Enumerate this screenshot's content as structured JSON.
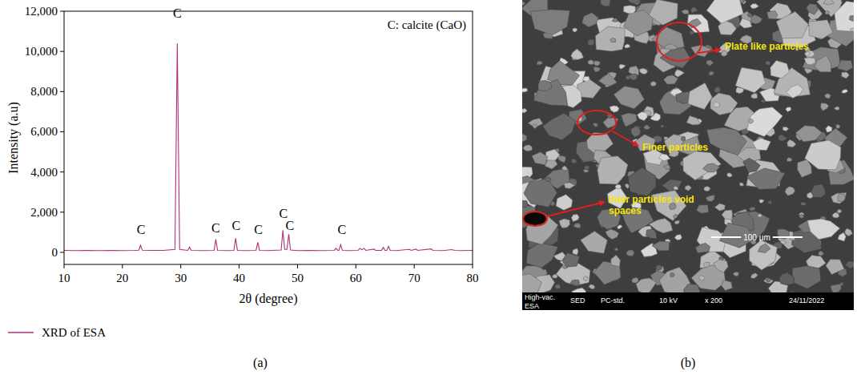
{
  "chart_data": {
    "type": "line",
    "panel_label": "(a)",
    "note": "C: calcite (CaO)",
    "x_label": "2θ (degree)",
    "y_label": "Intensity (a.u)",
    "x": [
      10,
      12,
      14,
      16,
      18,
      20,
      22,
      22.8,
      23.1,
      23.4,
      25,
      27,
      29.0,
      29.4,
      29.8,
      31.2,
      31.5,
      31.8,
      34,
      35.7,
      36.0,
      36.3,
      38,
      39.1,
      39.4,
      39.7,
      41,
      42.9,
      43.2,
      43.5,
      45,
      47.2,
      47.5,
      47.8,
      48.2,
      48.5,
      48.8,
      50,
      52,
      54,
      56.3,
      56.6,
      56.9,
      57.1,
      57.4,
      57.7,
      59,
      60.4,
      60.7,
      61.0,
      61.4,
      61.7,
      63.1,
      63.4,
      64.4,
      64.7,
      65.0,
      65.3,
      65.6,
      65.9,
      67,
      69.2,
      69.5,
      70.3,
      70.6,
      72.9,
      73.2,
      75,
      76.4,
      77,
      78,
      80
    ],
    "series": [
      {
        "name": "XRD of ESA",
        "color": "#b0307a",
        "values": [
          100,
          90,
          100,
          90,
          100,
          90,
          100,
          110,
          350,
          110,
          100,
          100,
          150,
          10400,
          150,
          100,
          260,
          100,
          90,
          100,
          650,
          100,
          90,
          100,
          700,
          100,
          90,
          100,
          500,
          100,
          90,
          120,
          1100,
          150,
          150,
          900,
          120,
          90,
          100,
          90,
          100,
          200,
          100,
          100,
          380,
          100,
          90,
          100,
          200,
          130,
          200,
          100,
          160,
          100,
          100,
          250,
          100,
          100,
          300,
          100,
          90,
          150,
          100,
          160,
          100,
          170,
          100,
          90,
          140,
          100,
          90,
          100
        ]
      }
    ],
    "annotations": [
      {
        "text": "C",
        "x": 23.2,
        "y": 900
      },
      {
        "text": "C",
        "x": 29.4,
        "y": 11700
      },
      {
        "text": "C",
        "x": 36.0,
        "y": 1000
      },
      {
        "text": "C",
        "x": 39.5,
        "y": 1100
      },
      {
        "text": "C",
        "x": 43.3,
        "y": 900
      },
      {
        "text": "C",
        "x": 47.6,
        "y": 1700
      },
      {
        "text": "C",
        "x": 48.7,
        "y": 1100
      },
      {
        "text": "C",
        "x": 57.6,
        "y": 900
      }
    ],
    "xlim": [
      10,
      80
    ],
    "ylim": [
      -600,
      12000
    ],
    "xticks": [
      10,
      20,
      30,
      40,
      50,
      60,
      70,
      80
    ],
    "yticks": [
      0,
      {
        "value": 2000,
        "label": "2,000"
      },
      {
        "value": 4000,
        "label": "4,000"
      },
      {
        "value": 6000,
        "label": "6,000"
      },
      {
        "value": 8000,
        "label": "8,000"
      },
      {
        "value": 10000,
        "label": "10,000"
      },
      {
        "value": 12000,
        "label": "12,000"
      }
    ],
    "grid": false,
    "legend": "bottom"
  },
  "image_panel": {
    "panel_label": "(b)",
    "annotations": [
      "Plate like particles",
      "Finer particles",
      "Inter particles void spaces"
    ],
    "scale_bar": "100 μm",
    "footer": [
      "High-vac.",
      "SED",
      "PC-std.",
      "10 kV",
      "x 200",
      "24/11/2022",
      "ESA"
    ]
  }
}
